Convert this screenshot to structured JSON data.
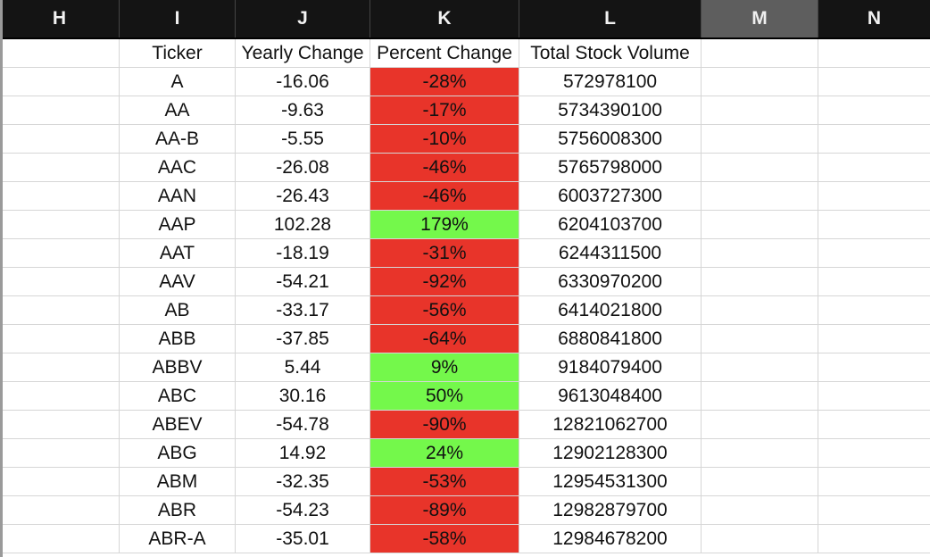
{
  "columns": {
    "H": "H",
    "I": "I",
    "J": "J",
    "K": "K",
    "L": "L",
    "M": "M",
    "N": "N"
  },
  "headers": {
    "ticker": "Ticker",
    "yearly_change": "Yearly Change",
    "percent_change": "Percent Change",
    "total_stock_volume": "Total Stock Volume"
  },
  "colors": {
    "negative_fill": "#e8342a",
    "positive_fill": "#74f84b",
    "header_bg": "#141414",
    "selected_header_bg": "#5e5e5e"
  },
  "rows": [
    {
      "ticker": "A",
      "yearly_change": "-16.06",
      "percent_change": "-28%",
      "total_stock_volume": "572978100"
    },
    {
      "ticker": "AA",
      "yearly_change": "-9.63",
      "percent_change": "-17%",
      "total_stock_volume": "5734390100"
    },
    {
      "ticker": "AA-B",
      "yearly_change": "-5.55",
      "percent_change": "-10%",
      "total_stock_volume": "5756008300"
    },
    {
      "ticker": "AAC",
      "yearly_change": "-26.08",
      "percent_change": "-46%",
      "total_stock_volume": "5765798000"
    },
    {
      "ticker": "AAN",
      "yearly_change": "-26.43",
      "percent_change": "-46%",
      "total_stock_volume": "6003727300"
    },
    {
      "ticker": "AAP",
      "yearly_change": "102.28",
      "percent_change": "179%",
      "total_stock_volume": "6204103700"
    },
    {
      "ticker": "AAT",
      "yearly_change": "-18.19",
      "percent_change": "-31%",
      "total_stock_volume": "6244311500"
    },
    {
      "ticker": "AAV",
      "yearly_change": "-54.21",
      "percent_change": "-92%",
      "total_stock_volume": "6330970200"
    },
    {
      "ticker": "AB",
      "yearly_change": "-33.17",
      "percent_change": "-56%",
      "total_stock_volume": "6414021800"
    },
    {
      "ticker": "ABB",
      "yearly_change": "-37.85",
      "percent_change": "-64%",
      "total_stock_volume": "6880841800"
    },
    {
      "ticker": "ABBV",
      "yearly_change": "5.44",
      "percent_change": "9%",
      "total_stock_volume": "9184079400"
    },
    {
      "ticker": "ABC",
      "yearly_change": "30.16",
      "percent_change": "50%",
      "total_stock_volume": "9613048400"
    },
    {
      "ticker": "ABEV",
      "yearly_change": "-54.78",
      "percent_change": "-90%",
      "total_stock_volume": "12821062700"
    },
    {
      "ticker": "ABG",
      "yearly_change": "14.92",
      "percent_change": "24%",
      "total_stock_volume": "12902128300"
    },
    {
      "ticker": "ABM",
      "yearly_change": "-32.35",
      "percent_change": "-53%",
      "total_stock_volume": "12954531300"
    },
    {
      "ticker": "ABR",
      "yearly_change": "-54.23",
      "percent_change": "-89%",
      "total_stock_volume": "12982879700"
    },
    {
      "ticker": "ABR-A",
      "yearly_change": "-35.01",
      "percent_change": "-58%",
      "total_stock_volume": "12984678200"
    }
  ]
}
